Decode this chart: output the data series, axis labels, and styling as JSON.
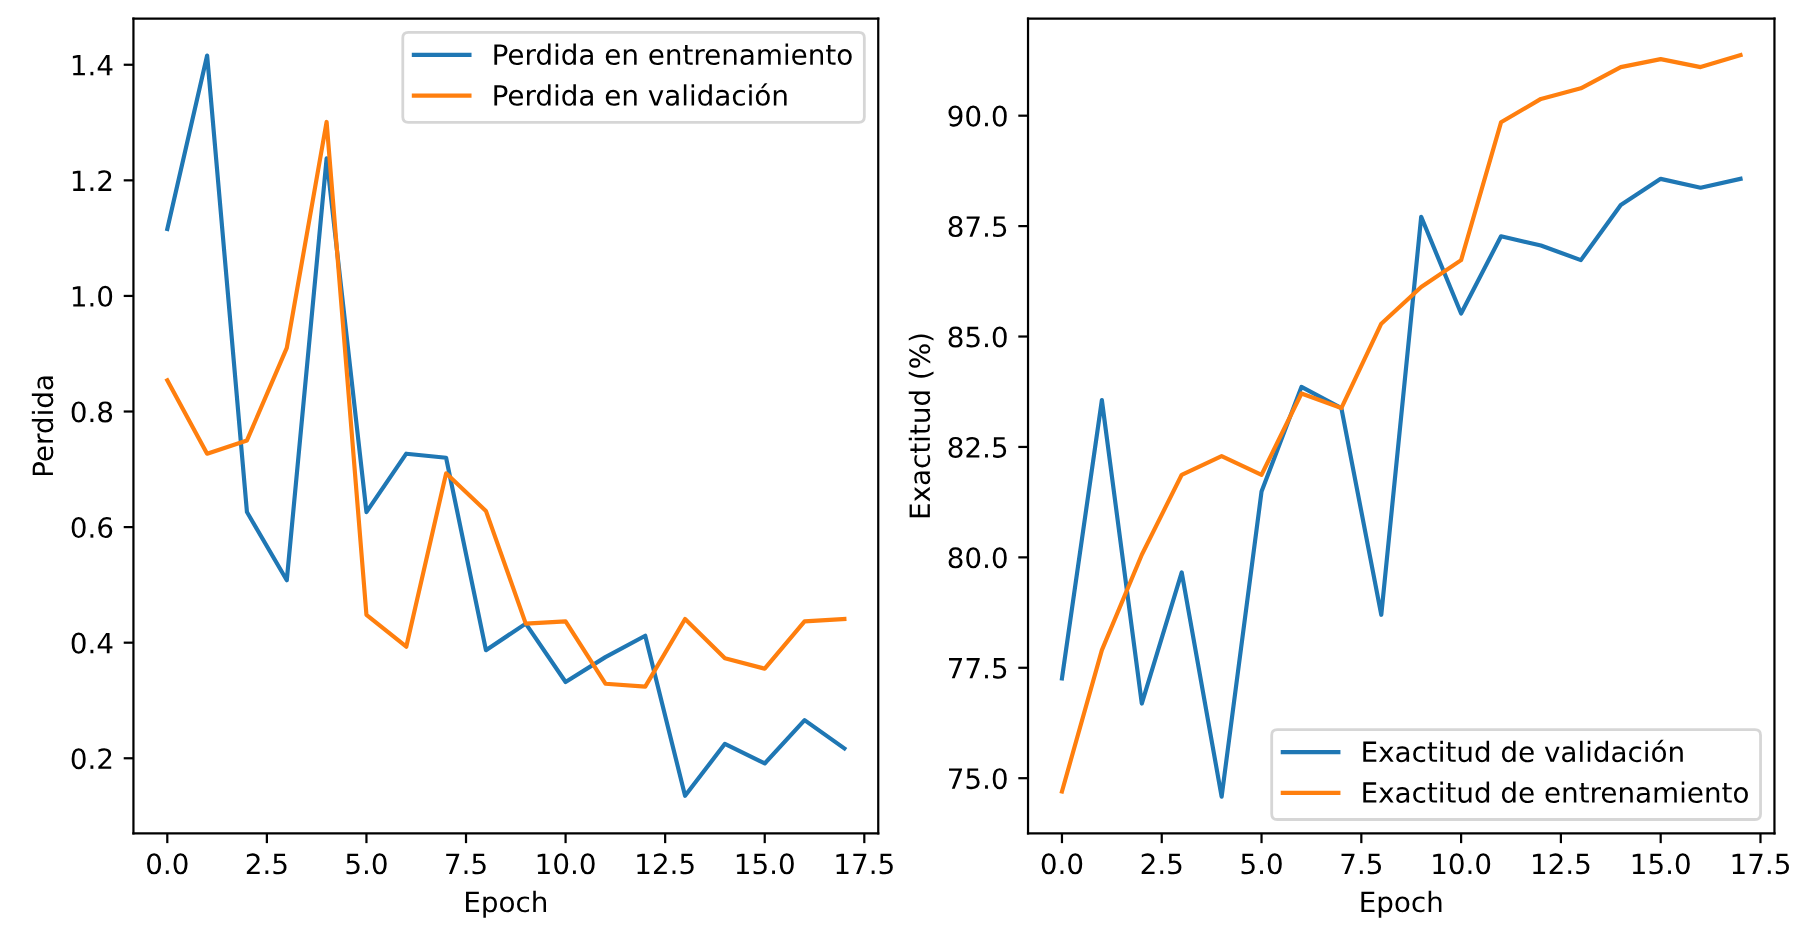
{
  "chart_data": [
    {
      "type": "line",
      "xlabel": "Epoch",
      "ylabel": "Perdida",
      "legend": "upper right",
      "x": [
        0,
        1,
        2,
        3,
        4,
        5,
        6,
        7,
        8,
        9,
        10,
        11,
        12,
        13,
        14,
        15,
        16,
        17
      ],
      "series": [
        {
          "name": "Perdida en entrenamiento",
          "color": "#1f77b4",
          "values": [
            1.116,
            1.416,
            0.626,
            0.508,
            1.238,
            0.626,
            0.727,
            0.72,
            0.387,
            0.433,
            0.332,
            0.375,
            0.412,
            0.135,
            0.225,
            0.191,
            0.266,
            0.217
          ]
        },
        {
          "name": "Perdida en validación",
          "color": "#ff7f0e",
          "values": [
            0.854,
            0.727,
            0.75,
            0.91,
            1.301,
            0.448,
            0.393,
            0.693,
            0.628,
            0.433,
            0.437,
            0.329,
            0.324,
            0.441,
            0.373,
            0.355,
            0.437,
            0.441
          ]
        }
      ],
      "xlim": [
        -0.85,
        17.85
      ],
      "xticks": [
        {
          "value": 0,
          "label": "0.0"
        },
        2.5,
        {
          "value": 5,
          "label": "5.0"
        },
        7.5,
        {
          "value": 10,
          "label": "10.0"
        },
        12.5,
        {
          "value": 15,
          "label": "15.0"
        },
        17.5
      ],
      "ylim": [
        0.07,
        1.48
      ],
      "yticks": [
        0.2,
        0.4,
        0.6,
        0.8,
        {
          "value": 1,
          "label": "1.0"
        },
        1.2,
        1.4
      ]
    },
    {
      "type": "line",
      "xlabel": "Epoch",
      "ylabel": "Exactitud (%)",
      "legend": "lower right",
      "x": [
        0,
        1,
        2,
        3,
        4,
        5,
        6,
        7,
        8,
        9,
        10,
        11,
        12,
        13,
        14,
        15,
        16,
        17
      ],
      "series": [
        {
          "name": "Exactitud de validación",
          "color": "#1f77b4",
          "values": [
            77.26,
            83.56,
            76.69,
            79.66,
            74.58,
            81.49,
            83.86,
            83.38,
            78.7,
            87.71,
            85.52,
            87.27,
            87.06,
            86.73,
            87.98,
            88.57,
            88.37,
            88.57
          ]
        },
        {
          "name": "Exactitud de entrenamiento",
          "color": "#ff7f0e",
          "values": [
            74.7,
            77.9,
            80.06,
            81.87,
            82.29,
            81.87,
            83.71,
            83.38,
            85.29,
            86.12,
            86.73,
            89.85,
            90.38,
            90.62,
            91.1,
            91.28,
            91.1,
            91.37
          ]
        }
      ],
      "xlim": [
        -0.85,
        17.85
      ],
      "xticks": [
        {
          "value": 0,
          "label": "0.0"
        },
        2.5,
        {
          "value": 5,
          "label": "5.0"
        },
        7.5,
        {
          "value": 10,
          "label": "10.0"
        },
        12.5,
        {
          "value": 15,
          "label": "15.0"
        },
        17.5
      ],
      "ylim": [
        73.75,
        92.2
      ],
      "yticks": [
        {
          "value": 75,
          "label": "75.0"
        },
        77.5,
        {
          "value": 80,
          "label": "80.0"
        },
        82.5,
        {
          "value": 85,
          "label": "85.0"
        },
        87.5,
        {
          "value": 90,
          "label": "90.0"
        }
      ]
    }
  ]
}
